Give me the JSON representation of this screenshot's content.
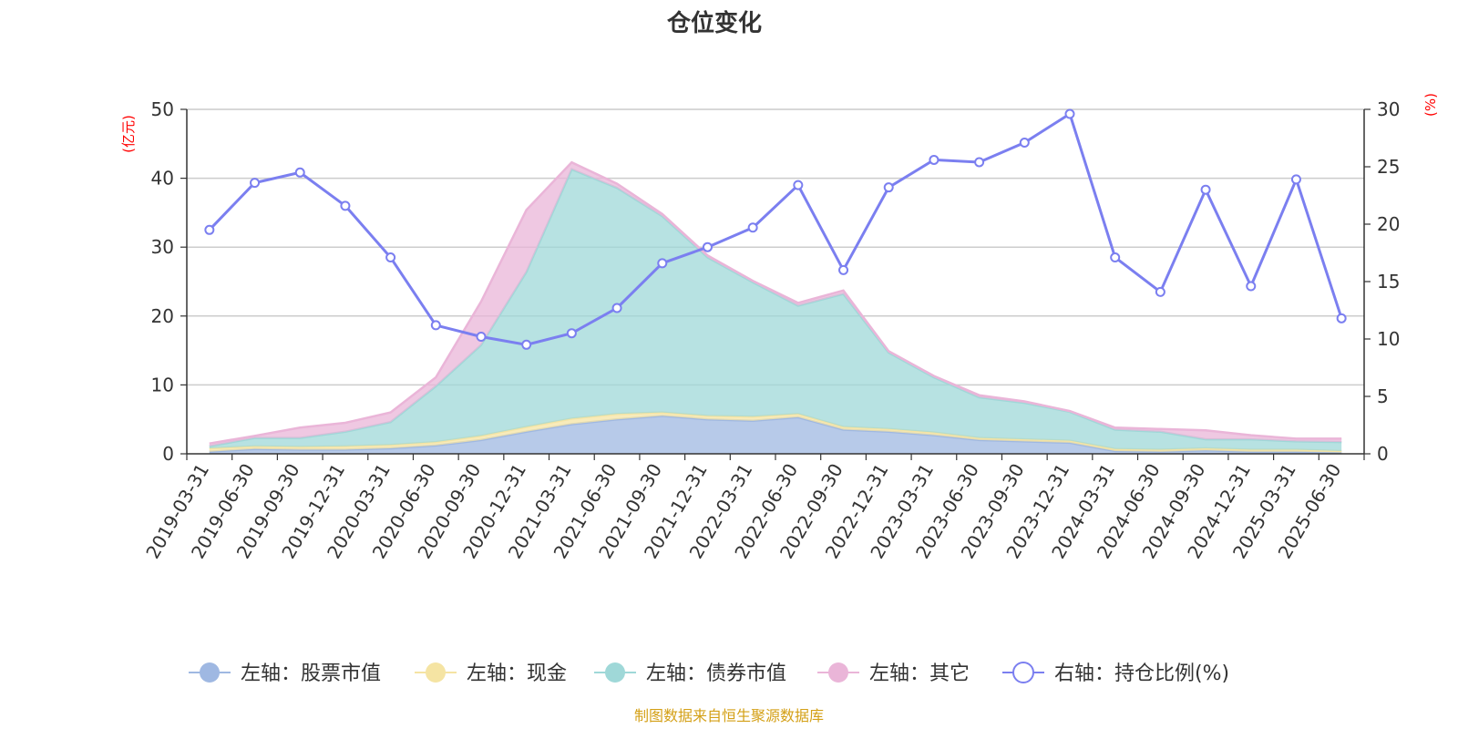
{
  "chart_data": {
    "type": "area",
    "title": "仓位变化",
    "source": "制图数据来自恒生聚源数据库",
    "y_left_unit": "(亿元)",
    "y_right_unit": "(%)",
    "y_left_ticks": [
      "0",
      "10",
      "20",
      "30",
      "40",
      "50"
    ],
    "y_right_ticks": [
      "0",
      "5",
      "10",
      "15",
      "20",
      "25",
      "30"
    ],
    "ylim_left": [
      0,
      50
    ],
    "ylim_right": [
      0,
      30
    ],
    "grid": true,
    "legend_position": "bottom",
    "categories": [
      "2019-03-31",
      "2019-06-30",
      "2019-09-30",
      "2019-12-31",
      "2020-03-31",
      "2020-06-30",
      "2020-09-30",
      "2020-12-31",
      "2021-03-31",
      "2021-06-30",
      "2021-09-30",
      "2021-12-31",
      "2022-03-31",
      "2022-06-30",
      "2022-09-30",
      "2022-12-31",
      "2023-03-31",
      "2023-06-30",
      "2023-09-30",
      "2023-12-31",
      "2024-03-31",
      "2024-06-30",
      "2024-09-30",
      "2024-12-31",
      "2025-03-31",
      "2025-06-30"
    ],
    "series": [
      {
        "name": "左轴：股票市值",
        "axis": "left",
        "color": "#9fb8e2",
        "values": [
          0.3,
          0.7,
          0.6,
          0.6,
          0.8,
          1.2,
          2.0,
          3.2,
          4.3,
          5.0,
          5.5,
          5.0,
          4.8,
          5.3,
          3.5,
          3.2,
          2.7,
          2.0,
          1.8,
          1.6,
          0.4,
          0.3,
          0.5,
          0.3,
          0.3,
          0.2
        ]
      },
      {
        "name": "左轴：现金",
        "axis": "left",
        "color": "#f5e4a3",
        "values": [
          0.5,
          0.4,
          0.4,
          0.5,
          0.5,
          0.5,
          0.6,
          0.7,
          0.8,
          0.8,
          0.5,
          0.5,
          0.6,
          0.5,
          0.4,
          0.4,
          0.4,
          0.3,
          0.3,
          0.3,
          0.3,
          0.3,
          0.3,
          0.3,
          0.3,
          0.2
        ]
      },
      {
        "name": "左轴：债券市值",
        "axis": "left",
        "color": "#9fd8d8",
        "values": [
          0.3,
          1.2,
          1.3,
          2.1,
          3.3,
          8.1,
          13.2,
          22.5,
          36.2,
          32.8,
          28.5,
          23.0,
          19.5,
          15.7,
          19.3,
          11.1,
          8.0,
          5.9,
          5.3,
          4.2,
          2.8,
          2.6,
          1.3,
          1.5,
          1.2,
          1.3
        ]
      },
      {
        "name": "左轴：其它",
        "axis": "left",
        "color": "#eab5d8",
        "values": [
          0.4,
          0.3,
          1.5,
          1.3,
          1.4,
          1.3,
          6.3,
          9.0,
          1.0,
          0.6,
          0.3,
          0.3,
          0.2,
          0.4,
          0.5,
          0.2,
          0.2,
          0.3,
          0.2,
          0.1,
          0.3,
          0.4,
          1.3,
          0.6,
          0.4,
          0.5
        ]
      },
      {
        "name": "右轴：持仓比例(%)",
        "axis": "right",
        "type": "line",
        "color": "#7b7ff0",
        "values": [
          19.5,
          23.6,
          24.5,
          21.6,
          17.1,
          11.2,
          10.2,
          9.5,
          10.5,
          12.7,
          16.6,
          18.0,
          19.7,
          23.4,
          16.0,
          23.2,
          25.6,
          25.4,
          27.1,
          29.6,
          17.1,
          14.1,
          23.0,
          14.6,
          23.9,
          11.8
        ]
      }
    ]
  }
}
